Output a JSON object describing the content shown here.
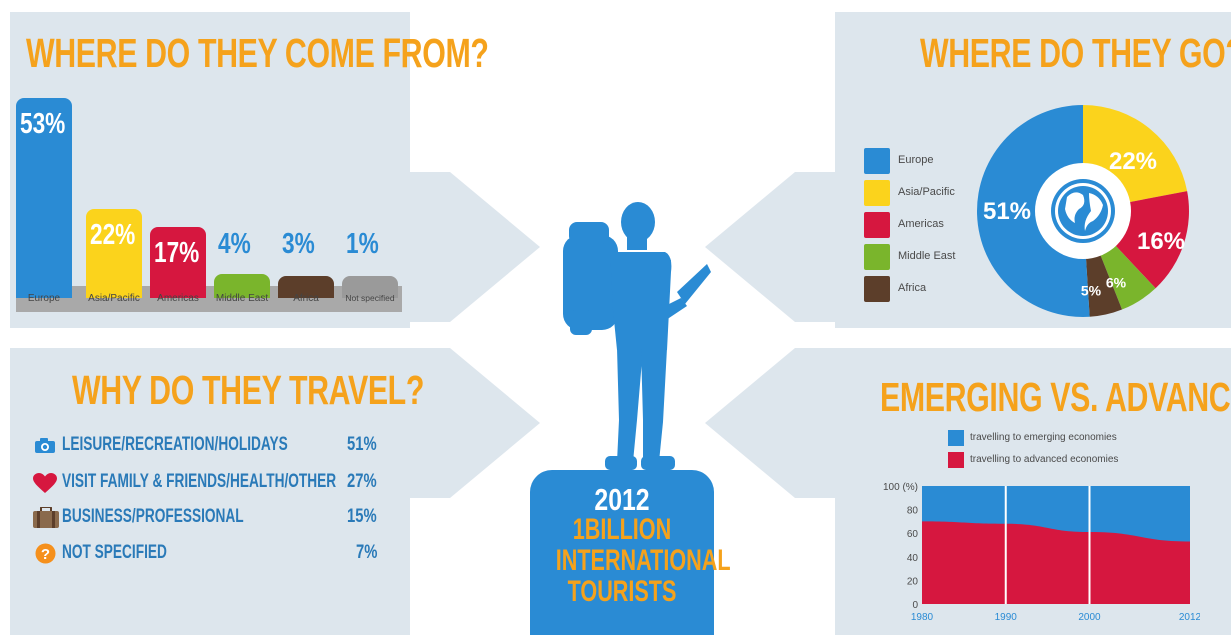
{
  "colors": {
    "title": "#f5a21c",
    "blue": "#2a8bd4",
    "yellow": "#fbd31c",
    "red": "#d6173f",
    "green": "#7ab52c",
    "brown": "#5c3e2a",
    "grey": "#9a9a9a",
    "silhouette": "#2a8bd4",
    "panel": "#dde6ed"
  },
  "come_from": {
    "title": "WHERE DO THEY COME FROM?"
  },
  "go": {
    "title": "WHERE DO THEY GO?",
    "globe_icon": "globe-icon"
  },
  "why": {
    "title": "WHY DO THEY TRAVEL?",
    "items": [
      {
        "icon": "camera-icon",
        "label": "LEISURE/RECREATION/HOLIDAYS",
        "pct": "51%"
      },
      {
        "icon": "heart-icon",
        "label": "VISIT FAMILY & FRIENDS/HEALTH/OTHER",
        "pct": "27%"
      },
      {
        "icon": "suitcase-icon",
        "label": "BUSINESS/PROFESSIONAL",
        "pct": "15%"
      },
      {
        "icon": "question-icon",
        "label": "NOT SPECIFIED",
        "pct": "7%"
      }
    ]
  },
  "center": {
    "year": "2012",
    "line1": "1BILLION",
    "line2": "INTERNATIONAL",
    "line3": "TOURISTS",
    "icon": "backpacker-icon"
  },
  "emerging": {
    "title": "EMERGING VS. ADVANCED"
  },
  "chart_data": [
    {
      "type": "bar",
      "title": "WHERE DO THEY COME FROM?",
      "categories": [
        "Europe",
        "Asia/Pacific",
        "Americas",
        "Middle East",
        "Africa",
        "Not specified"
      ],
      "values": [
        53,
        22,
        17,
        4,
        3,
        1
      ],
      "labels": [
        "53%",
        "22%",
        "17%",
        "4%",
        "3%",
        "1%"
      ],
      "colors": [
        "#2a8bd4",
        "#fbd31c",
        "#d6173f",
        "#7ab52c",
        "#5c3e2a",
        "#9a9a9a"
      ],
      "label_colors": [
        "#ffffff",
        "#ffffff",
        "#ffffff",
        "#2a8bd4",
        "#2a8bd4",
        "#2a8bd4"
      ]
    },
    {
      "type": "pie",
      "title": "WHERE DO THEY GO?",
      "categories": [
        "Europe",
        "Asia/Pacific",
        "Americas",
        "Middle East",
        "Africa"
      ],
      "values": [
        51,
        22,
        16,
        6,
        5
      ],
      "labels": [
        "51%",
        "22%",
        "16%",
        "6%",
        "5%"
      ],
      "colors": [
        "#2a8bd4",
        "#fbd31c",
        "#d6173f",
        "#7ab52c",
        "#5c3e2a"
      ],
      "legend": "left"
    },
    {
      "type": "area",
      "title": "EMERGING VS. ADVANCED",
      "x": [
        1980,
        1990,
        2000,
        2012
      ],
      "x_ticks": [
        "1980",
        "1990",
        "2000",
        "2012"
      ],
      "y_ticks": [
        "100 (%)",
        "80",
        "60",
        "40",
        "20",
        "0"
      ],
      "ylim": [
        0,
        100
      ],
      "series": [
        {
          "name": "travelling to emerging economies",
          "values": [
            30,
            32,
            39,
            47
          ],
          "color": "#2a8bd4"
        },
        {
          "name": "travelling to advanced economies",
          "values": [
            70,
            68,
            61,
            53
          ],
          "color": "#d6173f"
        }
      ],
      "legend": "top"
    }
  ]
}
